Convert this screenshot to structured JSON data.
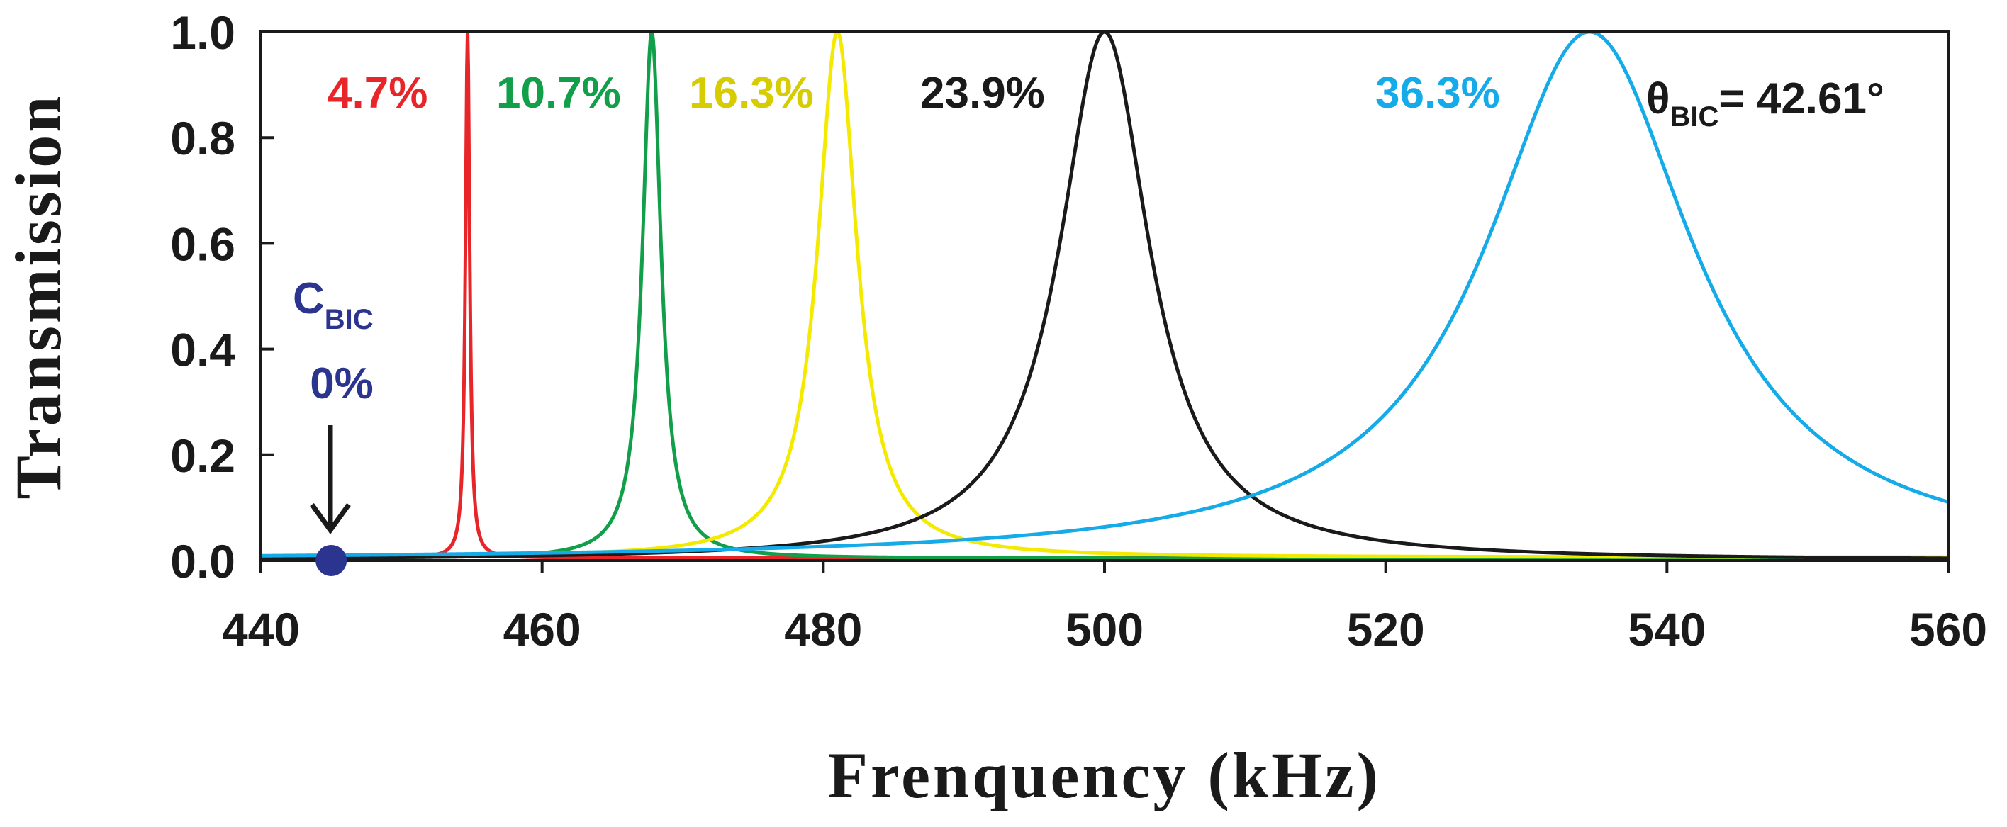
{
  "chart_data": {
    "type": "line",
    "title": "",
    "xlabel": "Frenquency (kHz)",
    "ylabel": "Transmission",
    "xlim": [
      440,
      560
    ],
    "ylim": [
      0,
      1.0
    ],
    "xticks": [
      440,
      460,
      480,
      500,
      520,
      540,
      560
    ],
    "yticks": [
      0.0,
      0.2,
      0.4,
      0.6,
      0.8,
      1.0
    ],
    "xtick_labels": [
      "440",
      "460",
      "480",
      "500",
      "520",
      "540",
      "560"
    ],
    "ytick_labels": [
      "0.0",
      "0.2",
      "0.4",
      "0.6",
      "0.8",
      "1.0"
    ],
    "series": [
      {
        "name": "4.7%",
        "color": "#e8262a",
        "center": 454.7,
        "gamma": 0.18,
        "baseline": 0.005,
        "peak": 1.0
      },
      {
        "name": "10.7%",
        "color": "#119f49",
        "center": 467.8,
        "gamma": 0.8,
        "baseline": 0.004,
        "peak": 1.0
      },
      {
        "name": "16.3%",
        "color": "#f4ea00",
        "center": 481.0,
        "gamma": 1.7,
        "baseline": 0.006,
        "peak": 1.0
      },
      {
        "name": "23.9%",
        "color": "#1a1a1a",
        "center": 500.0,
        "gamma": 3.9,
        "baseline": 0.0,
        "peak": 1.0
      },
      {
        "name": "36.3%",
        "color": "#15aae8",
        "center": 534.5,
        "gamma": 9.0,
        "baseline": 0.0,
        "peak": 1.0
      }
    ],
    "bic_point": {
      "label": "C",
      "subscript": "BIC",
      "value_label": "0%",
      "x": 445,
      "y": 0.0,
      "color": "#2b3590"
    },
    "annotation": {
      "symbol": "θ",
      "subscript": "BIC",
      "text": "= 42.61°"
    },
    "grid": false
  }
}
